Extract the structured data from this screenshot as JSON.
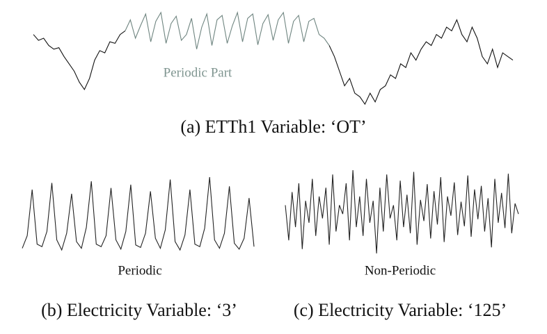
{
  "chart_data": [
    {
      "type": "line",
      "title": "(a) ETTh1 Variable: ‘OT’",
      "annotation": "Periodic Part",
      "series": [
        {
          "color": "#111111",
          "values": [
            100,
            92,
            95,
            85,
            80,
            82,
            70,
            60,
            50,
            35,
            25,
            40,
            65,
            78,
            75,
            90,
            88,
            100,
            105,
            null,
            null,
            null,
            null,
            null,
            null,
            null,
            null,
            null,
            null,
            null,
            null,
            null,
            null,
            null,
            null,
            null,
            null,
            null,
            null,
            null,
            null,
            null,
            null,
            null,
            null,
            null,
            null,
            null,
            null,
            null,
            null,
            null,
            null,
            null,
            null,
            null,
            null,
            null,
            85,
            70,
            50,
            30,
            40,
            20,
            15,
            5,
            20,
            8,
            25,
            30,
            45,
            40,
            60,
            55,
            75,
            65,
            80,
            90,
            85,
            100,
            95,
            110,
            105,
            120,
            100,
            90,
            110,
            95,
            70,
            60,
            80,
            55,
            75,
            70,
            65
          ]
        },
        {
          "color": "#6f8580",
          "values": [
            null,
            null,
            null,
            null,
            null,
            null,
            null,
            null,
            null,
            null,
            null,
            null,
            null,
            null,
            null,
            null,
            null,
            null,
            105,
            120,
            95,
            112,
            128,
            90,
            118,
            130,
            88,
            115,
            125,
            92,
            100,
            122,
            80,
            110,
            128,
            85,
            120,
            126,
            88,
            112,
            130,
            90,
            122,
            128,
            86,
            115,
            127,
            92,
            120,
            130,
            88,
            118,
            126,
            90,
            118,
            122,
            100,
            95,
            85
          ]
        }
      ]
    },
    {
      "type": "line",
      "title": "(b) Electricity Variable: ‘3’",
      "annotation": "Periodic",
      "series": [
        {
          "color": "#222222",
          "values": [
            10,
            25,
            80,
            15,
            12,
            30,
            88,
            20,
            8,
            28,
            75,
            18,
            10,
            35,
            90,
            15,
            12,
            25,
            82,
            20,
            9,
            30,
            86,
            14,
            11,
            28,
            78,
            22,
            10,
            32,
            92,
            18,
            8,
            26,
            80,
            15,
            12,
            34,
            95,
            20,
            10,
            28,
            84,
            16,
            9,
            22,
            70,
            12
          ]
        }
      ]
    },
    {
      "type": "line",
      "title": "(c) Electricity Variable: ‘125’",
      "annotation": "Non-Periodic",
      "series": [
        {
          "color": "#222222",
          "values": [
            60,
            20,
            75,
            35,
            85,
            10,
            65,
            40,
            90,
            25,
            70,
            45,
            80,
            15,
            95,
            30,
            60,
            50,
            85,
            20,
            100,
            35,
            70,
            25,
            90,
            40,
            65,
            5,
            80,
            30,
            95,
            45,
            60,
            20,
            88,
            35,
            72,
            28,
            98,
            15,
            66,
            42,
            84,
            22,
            76,
            38,
            92,
            18,
            70,
            48,
            86,
            26,
            64,
            36,
            94,
            24,
            78,
            44,
            82,
            30,
            68,
            12,
            90,
            40,
            74,
            34,
            96,
            28,
            62,
            50
          ]
        }
      ]
    }
  ]
}
